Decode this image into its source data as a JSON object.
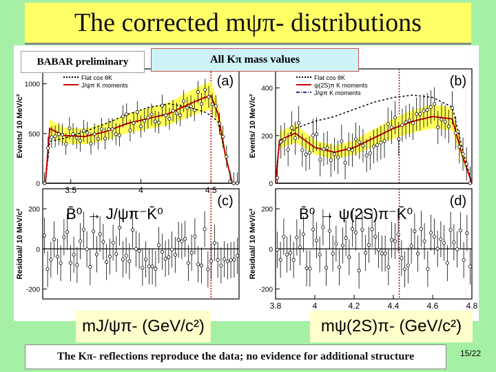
{
  "slide": {
    "title": "The corrected mψπ- distributions",
    "babar_label": "BABAR preliminary",
    "mass_label": "All Kπ mass values",
    "xlabel_left": "mJ/ψπ- (GeV/c²)",
    "xlabel_right": "mψ(2S)π- (GeV/c²)",
    "footer": "The Kπ- reflections reproduce the data; no evidence for additional structure",
    "page": "15/22"
  },
  "colors": {
    "background": "#a6f0a6",
    "title_bg": "#ffff66",
    "band": "#ffff33",
    "red_curve": "#cc0000",
    "blue_curve": "#1a2a8a",
    "mass_box": "#cdf3f7"
  },
  "chart_data": [
    {
      "type": "scatter",
      "panel": "(a)",
      "ylabel": "Events/ 10 MeV/c²",
      "xlim": [
        3.3,
        4.7
      ],
      "yticks": [
        0,
        500,
        1000
      ],
      "xticks": [
        3.5,
        4,
        4.5
      ],
      "legend": [
        "Flat cos θK",
        "J/ψπ K moments"
      ],
      "x": [
        3.32,
        3.35,
        3.45,
        3.6,
        3.75,
        3.9,
        4.05,
        4.2,
        4.35,
        4.45,
        4.5,
        4.55,
        4.6,
        4.65
      ],
      "y_moments": [
        20,
        550,
        480,
        470,
        520,
        600,
        650,
        700,
        800,
        860,
        880,
        700,
        300,
        10
      ],
      "y_flat": [
        10,
        420,
        450,
        520,
        600,
        690,
        760,
        800,
        760,
        720,
        680,
        620,
        300,
        10
      ],
      "marker_line_x": 4.5
    },
    {
      "type": "scatter",
      "panel": "(b)",
      "ylabel": "Events/ 10 MeV/c²",
      "xlim": [
        3.8,
        4.8
      ],
      "yticks": [
        0,
        200,
        400
      ],
      "legend": [
        "Flat cos θK",
        "ψ(2S)π K moments",
        "J/ψπ K moments"
      ],
      "x": [
        3.8,
        3.82,
        3.9,
        4.0,
        4.1,
        4.2,
        4.3,
        4.4,
        4.5,
        4.6,
        4.7,
        4.75,
        4.8
      ],
      "y_moments": [
        0,
        180,
        210,
        150,
        130,
        150,
        190,
        230,
        260,
        280,
        270,
        120,
        0
      ],
      "y_flat": [
        0,
        160,
        230,
        260,
        280,
        310,
        340,
        360,
        370,
        360,
        320,
        150,
        0
      ],
      "marker_line_x": 4.43
    },
    {
      "type": "scatter",
      "panel": "(c)",
      "ylabel": "Residual/ 10 MeV/c²",
      "annotation": "B̄⁰ → J/ψπ⁻K̄⁰",
      "xlim": [
        3.3,
        4.7
      ],
      "yticks": [
        -200,
        0,
        200
      ],
      "y": [
        0
      ],
      "marker_line_x": 4.5
    },
    {
      "type": "scatter",
      "panel": "(d)",
      "ylabel": "Residual/ 10 MeV/c²",
      "annotation": "B̄⁰ → ψ(2S)π⁻K̄⁰",
      "xlim": [
        3.8,
        4.8
      ],
      "xticks": [
        3.8,
        4,
        4.2,
        4.4,
        4.6,
        4.8
      ],
      "yticks": [
        -200,
        0,
        200
      ],
      "y": [
        0
      ],
      "marker_line_x": 4.43
    }
  ]
}
